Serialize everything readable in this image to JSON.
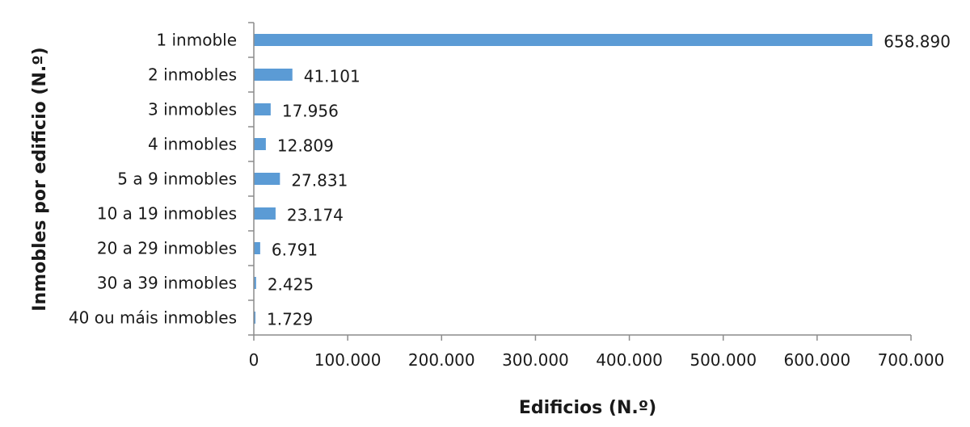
{
  "chart_data": {
    "type": "bar",
    "orientation": "horizontal",
    "title": "",
    "xlabel": "Edificios (N.º)",
    "ylabel": "Inmobles por edificio (N.º)",
    "categories": [
      "1 inmoble",
      "2 inmobles",
      "3 inmobles",
      "4 inmobles",
      "5 a 9 inmobles",
      "10 a 19 inmobles",
      "20 a 29 inmobles",
      "30 a 39 inmobles",
      "40 ou máis inmobles"
    ],
    "values": [
      658890,
      41101,
      17956,
      12809,
      27831,
      23174,
      6791,
      2425,
      1729
    ],
    "value_labels": [
      "658.890",
      "41.101",
      "17.956",
      "12.809",
      "27.831",
      "23.174",
      "6.791",
      "2.425",
      "1.729"
    ],
    "xlim": [
      0,
      700000
    ],
    "xticks": [
      0,
      100000,
      200000,
      300000,
      400000,
      500000,
      600000,
      700000
    ],
    "xtick_labels": [
      "0",
      "100.000",
      "200.000",
      "300.000",
      "400.000",
      "500.000",
      "600.000",
      "700.000"
    ],
    "grid": false,
    "legend": "none",
    "bar_color": "#5b9bd5",
    "axis_color": "#8c8c8c"
  }
}
